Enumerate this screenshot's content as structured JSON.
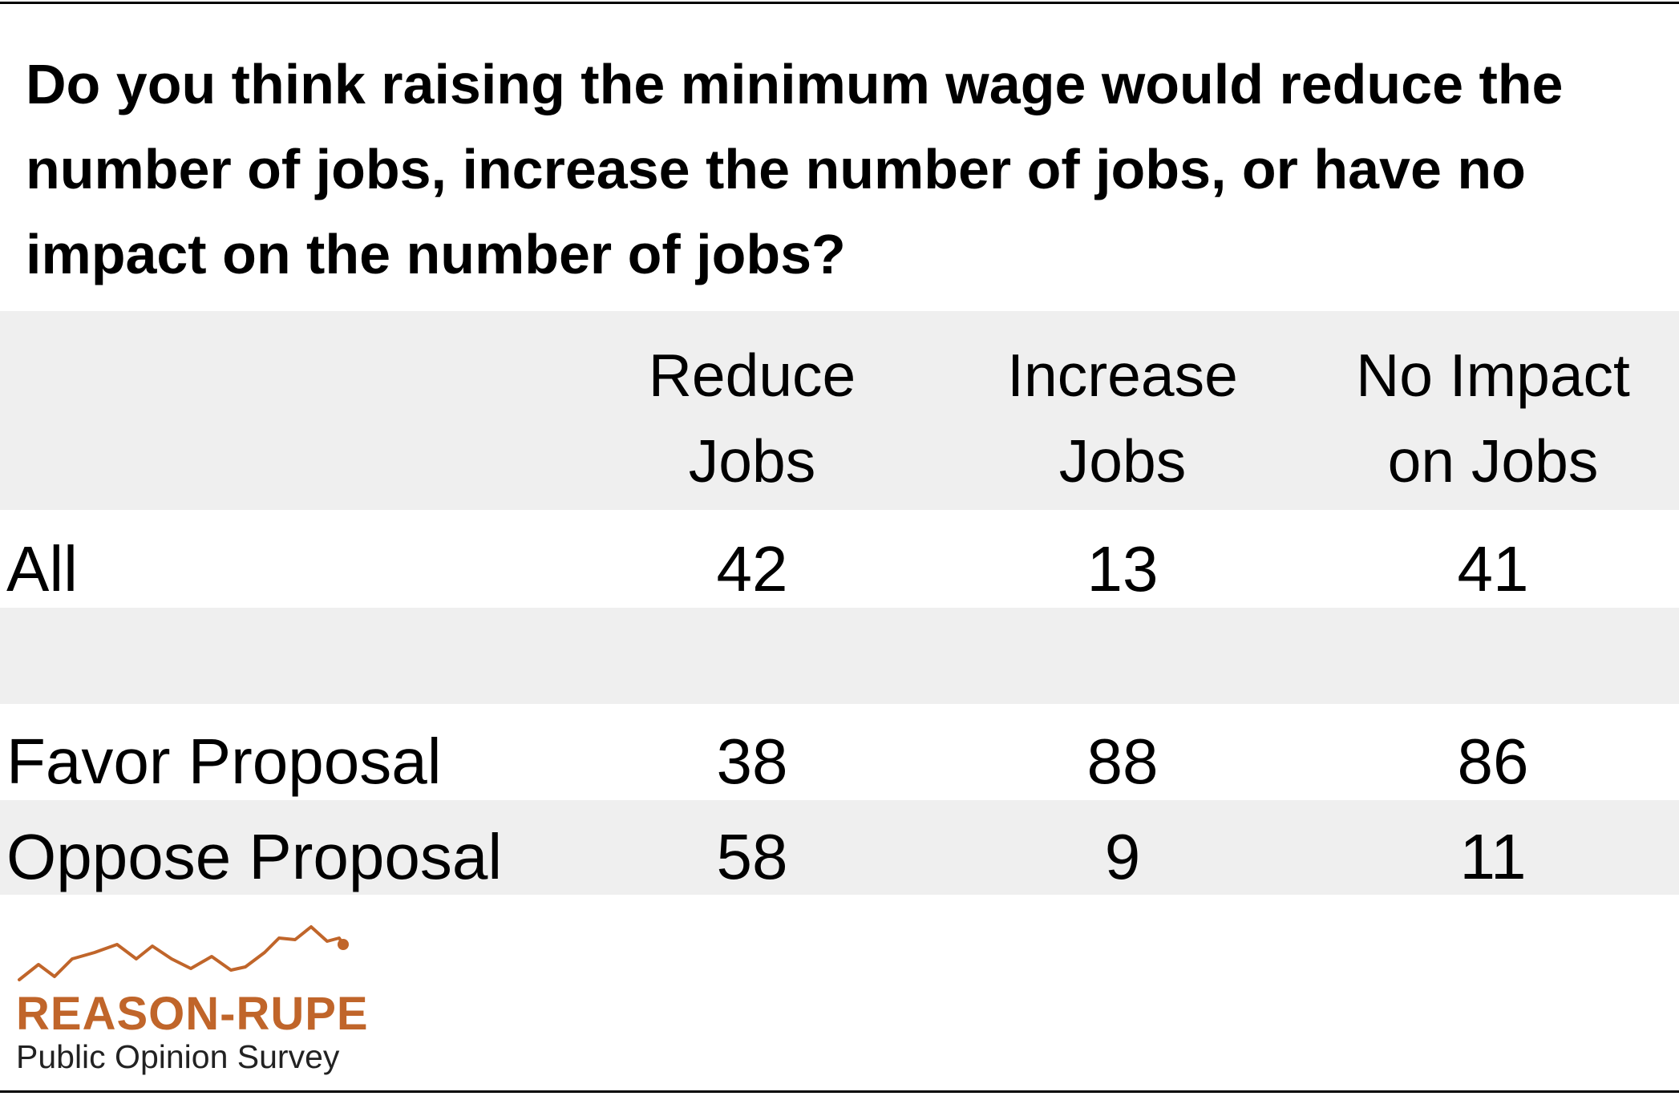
{
  "chart_data": {
    "type": "table",
    "title": "Do you think raising the minimum wage would reduce the number of jobs, increase the number of jobs, or have no impact on the number of jobs?",
    "columns": [
      {
        "line1": "Reduce",
        "line2": "Jobs"
      },
      {
        "line1": "Increase",
        "line2": "Jobs"
      },
      {
        "line1": "No Impact",
        "line2": "on Jobs"
      }
    ],
    "rows": [
      {
        "label": "All",
        "values": [
          "42",
          "13",
          "41"
        ]
      },
      {
        "label": "",
        "values": [
          "",
          "",
          ""
        ]
      },
      {
        "label": "Favor Proposal",
        "values": [
          "38",
          "88",
          "86"
        ]
      },
      {
        "label": "Oppose Proposal",
        "values": [
          "58",
          "9",
          "11"
        ]
      }
    ]
  },
  "logo": {
    "brand": "REASON-RUPE",
    "tagline": "Public Opinion Survey",
    "color": "#c0652a"
  }
}
